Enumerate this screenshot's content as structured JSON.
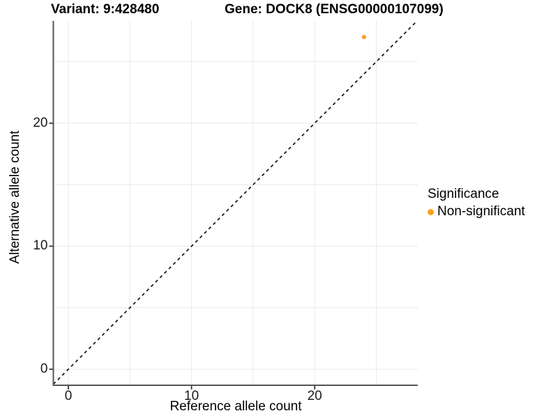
{
  "titles": {
    "variant": "Variant: 9:428480",
    "gene": "Gene: DOCK8 (ENSG00000107099)"
  },
  "legend": {
    "title": "Significance",
    "items": [
      {
        "label": "Non-significant",
        "color": "#FAA01E"
      }
    ]
  },
  "colors": {
    "point": "#FAA01E",
    "gridline": "#e8e8e8",
    "axis_line": "#545454",
    "tick_mark": "#333333",
    "identity_line": "#111111",
    "background": "#ffffff"
  },
  "chart_data": {
    "type": "scatter",
    "title": "Variant: 9:428480    Gene: DOCK8 (ENSG00000107099)",
    "xlabel": "Reference allele count",
    "ylabel": "Alternative allele count",
    "xlim": [
      -1.2,
      28.4
    ],
    "ylim": [
      -1.3,
      28.3
    ],
    "xticks": [
      0,
      10,
      20
    ],
    "yticks": [
      0,
      10,
      20
    ],
    "xminor": [
      5,
      15,
      25
    ],
    "yminor": [
      5,
      15,
      25
    ],
    "grid": true,
    "legend_position": "right",
    "reference_line": {
      "kind": "identity y=x",
      "style": "dashed",
      "color": "#111111"
    },
    "series": [
      {
        "name": "Non-significant",
        "color": "#FAA01E",
        "points": [
          {
            "x": 24,
            "y": 27
          }
        ]
      }
    ]
  }
}
